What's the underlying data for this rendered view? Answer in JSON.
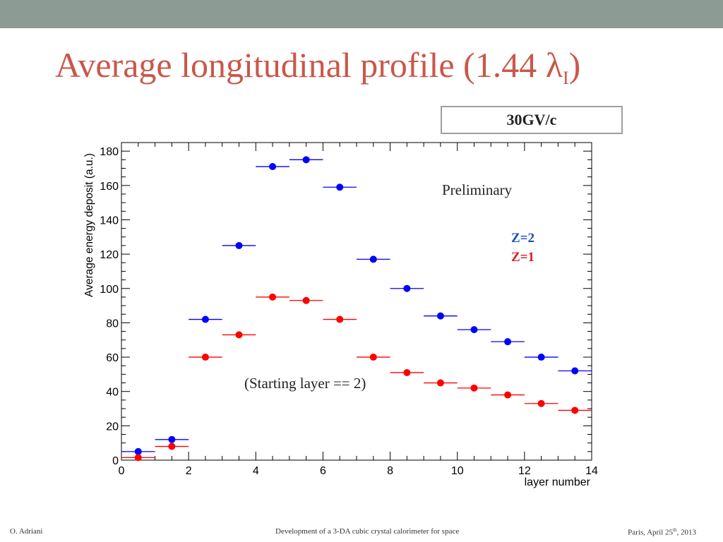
{
  "slide": {
    "title": "Average longitudinal profile (1.44 ",
    "title_symbol": "λ",
    "title_subscript": "I",
    "title_close": ")",
    "momentum_label": "30GV/c",
    "footer_left": "O. Adriani",
    "footer_center": "Development of a 3-DA cubic crystal calorimeter for space",
    "footer_right_prefix": "Paris, April 25",
    "footer_right_sup": "th",
    "footer_right_suffix": ", 2013"
  },
  "colors": {
    "title": "#c9584a",
    "top_bar": "#8d9b95",
    "z2": "#0000ff",
    "z1": "#ff0000",
    "z2_label": "#1a4fbf",
    "z1_label": "#d92020"
  },
  "chart_data": {
    "type": "scatter",
    "xlabel": "layer number",
    "ylabel": "Average energy deposit (a.u.)",
    "xlim": [
      0,
      14
    ],
    "ylim": [
      0,
      185
    ],
    "xticks": [
      0,
      2,
      4,
      6,
      8,
      10,
      12,
      14
    ],
    "yticks": [
      0,
      20,
      40,
      60,
      80,
      100,
      120,
      140,
      160,
      180
    ],
    "grid": false,
    "x_error_halfwidth": 0.5,
    "series": [
      {
        "name": "Z=2",
        "color": "#0000ff",
        "x": [
          0.5,
          1.5,
          2.5,
          3.5,
          4.5,
          5.5,
          6.5,
          7.5,
          8.5,
          9.5,
          10.5,
          11.5,
          12.5,
          13.5
        ],
        "y": [
          5,
          12,
          82,
          125,
          171,
          175,
          159,
          117,
          100,
          84,
          76,
          69,
          60,
          52
        ]
      },
      {
        "name": "Z=1",
        "color": "#ff0000",
        "x": [
          0.5,
          1.5,
          2.5,
          3.5,
          4.5,
          5.5,
          6.5,
          7.5,
          8.5,
          9.5,
          10.5,
          11.5,
          12.5,
          13.5
        ],
        "y": [
          1.5,
          8,
          60,
          73,
          95,
          93,
          82,
          60,
          51,
          45,
          42,
          38,
          33,
          29
        ]
      }
    ],
    "annotations": {
      "preliminary": "Preliminary",
      "starting_layer": "(Starting layer == 2)"
    }
  }
}
